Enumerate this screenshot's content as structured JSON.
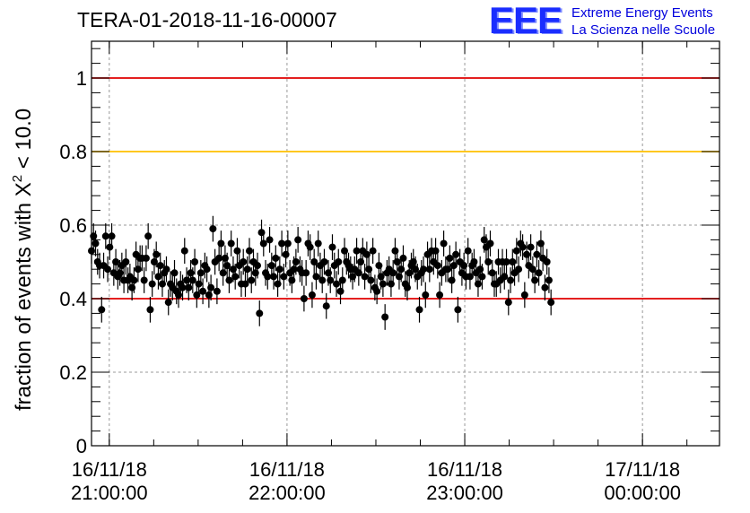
{
  "title": "TERA-01-2018-11-16-00007",
  "logo": {
    "mark": "EEE",
    "line1": "Extreme Energy Events",
    "line2": "La Scienza nelle Scuole",
    "color": "#1a2dff"
  },
  "chart_data": {
    "type": "scatter",
    "title": "TERA-01-2018-11-16-00007",
    "ylabel_main": "fraction of events with X",
    "ylabel_sup": "2",
    "ylabel_tail": " < 10.0",
    "xlabel": "",
    "ylim": [
      0,
      1.1
    ],
    "yticks": [
      "0",
      "0.2",
      "0.4",
      "0.6",
      "0.8",
      "1"
    ],
    "ytick_values": [
      0,
      0.2,
      0.4,
      0.6,
      0.8,
      1.0
    ],
    "xlim": [
      "2018-11-16 20:54:00",
      "2018-11-17 00:26:00"
    ],
    "xticks": [
      {
        "date": "16/11/18",
        "time": "21:00:00"
      },
      {
        "date": "16/11/18",
        "time": "22:00:00"
      },
      {
        "date": "16/11/18",
        "time": "23:00:00"
      },
      {
        "date": "17/11/18",
        "time": "00:00:00"
      }
    ],
    "grid": true,
    "reference_lines": [
      {
        "y": 1.0,
        "color": "#e00000"
      },
      {
        "y": 0.8,
        "color": "#ffc000"
      },
      {
        "y": 0.4,
        "color": "#e00000"
      }
    ],
    "marker_color": "#000000",
    "series": [
      {
        "x_start": "2018-11-16 20:54:00",
        "step_seconds": 41,
        "y_error": 0.035,
        "y": [
          0.53,
          0.57,
          0.55,
          0.5,
          0.49,
          0.37,
          0.49,
          0.57,
          0.48,
          0.54,
          0.57,
          0.47,
          0.5,
          0.46,
          0.47,
          0.49,
          0.45,
          0.5,
          0.45,
          0.46,
          0.43,
          0.45,
          0.52,
          0.48,
          0.51,
          0.51,
          0.45,
          0.51,
          0.57,
          0.37,
          0.44,
          0.5,
          0.52,
          0.46,
          0.49,
          0.44,
          0.47,
          0.48,
          0.39,
          0.44,
          0.43,
          0.47,
          0.42,
          0.41,
          0.44,
          0.43,
          0.53,
          0.45,
          0.43,
          0.47,
          0.45,
          0.5,
          0.41,
          0.44,
          0.47,
          0.42,
          0.49,
          0.48,
          0.41,
          0.43,
          0.59,
          0.5,
          0.42,
          0.51,
          0.55,
          0.47,
          0.51,
          0.49,
          0.45,
          0.55,
          0.48,
          0.46,
          0.53,
          0.49,
          0.44,
          0.5,
          0.44,
          0.48,
          0.53,
          0.45,
          0.5,
          0.47,
          0.49,
          0.36,
          0.58,
          0.55,
          0.47,
          0.46,
          0.56,
          0.49,
          0.46,
          0.51,
          0.44,
          0.48,
          0.55,
          0.46,
          0.52,
          0.55,
          0.47,
          0.45,
          0.48,
          0.5,
          0.56,
          0.48,
          0.47,
          0.4,
          0.47,
          0.55,
          0.54,
          0.41,
          0.5,
          0.46,
          0.55,
          0.49,
          0.45,
          0.5,
          0.38,
          0.47,
          0.45,
          0.54,
          0.49,
          0.44,
          0.5,
          0.42,
          0.45,
          0.53,
          0.5,
          0.49,
          0.48,
          0.46,
          0.48,
          0.53,
          0.47,
          0.5,
          0.53,
          0.46,
          0.52,
          0.48,
          0.45,
          0.53,
          0.43,
          0.42,
          0.49,
          0.46,
          0.44,
          0.35,
          0.47,
          0.48,
          0.44,
          0.47,
          0.53,
          0.5,
          0.46,
          0.48,
          0.51,
          0.44,
          0.43,
          0.47,
          0.49,
          0.5,
          0.48,
          0.46,
          0.37,
          0.47,
          0.48,
          0.41,
          0.52,
          0.48,
          0.53,
          0.5,
          0.53,
          0.49,
          0.41,
          0.47,
          0.55,
          0.48,
          0.48,
          0.51,
          0.45,
          0.49,
          0.52,
          0.37,
          0.5,
          0.47,
          0.49,
          0.46,
          0.53,
          0.46,
          0.49,
          0.5,
          0.47,
          0.44,
          0.48,
          0.46,
          0.56,
          0.54,
          0.5,
          0.55,
          0.47,
          0.44,
          0.44,
          0.5,
          0.45,
          0.5,
          0.46,
          0.5,
          0.39,
          0.45,
          0.5,
          0.47,
          0.53,
          0.48,
          0.55,
          0.54,
          0.41,
          0.52,
          0.49,
          0.54,
          0.48,
          0.45,
          0.52,
          0.47,
          0.55,
          0.51,
          0.43,
          0.5,
          0.45,
          0.39
        ]
      }
    ]
  }
}
